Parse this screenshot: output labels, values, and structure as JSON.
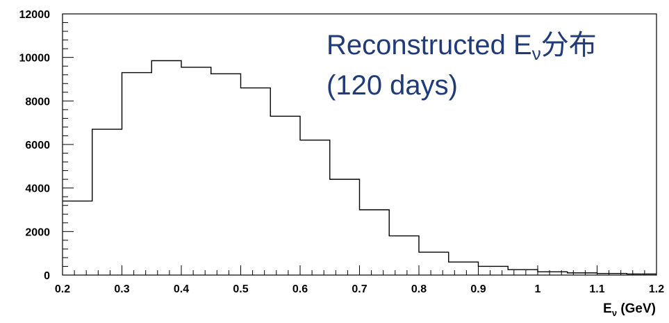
{
  "chart_data": {
    "type": "histogram",
    "title": "",
    "annotation": {
      "line1_prefix": "Reconstructed E",
      "line1_subscript": "ν",
      "line1_suffix": "分布",
      "line2": "(120 days)"
    },
    "xlabel": {
      "main": "E",
      "subscript": "ν",
      "unit": " (GeV)"
    },
    "ylabel": "",
    "xlim": [
      0.2,
      1.2
    ],
    "ylim": [
      0,
      12000
    ],
    "x_ticks": [
      0.2,
      0.3,
      0.4,
      0.5,
      0.6,
      0.7,
      0.8,
      0.9,
      1.0,
      1.1,
      1.2
    ],
    "x_tick_labels": [
      "0.2",
      "0.3",
      "0.4",
      "0.5",
      "0.6",
      "0.7",
      "0.8",
      "0.9",
      "1",
      "1.1",
      "1.2"
    ],
    "y_ticks": [
      0,
      2000,
      4000,
      6000,
      8000,
      10000,
      12000
    ],
    "y_tick_labels": [
      "0",
      "2000",
      "4000",
      "6000",
      "8000",
      "10000",
      "12000"
    ],
    "bin_edges": [
      0.2,
      0.25,
      0.3,
      0.35,
      0.4,
      0.45,
      0.5,
      0.55,
      0.6,
      0.65,
      0.7,
      0.75,
      0.8,
      0.85,
      0.9,
      0.95,
      1.0,
      1.05,
      1.1,
      1.15,
      1.2
    ],
    "values": [
      3400,
      6700,
      9300,
      9850,
      9550,
      9250,
      8600,
      7300,
      6200,
      4400,
      3000,
      1800,
      1050,
      600,
      400,
      250,
      150,
      100,
      75,
      50
    ],
    "grid": false,
    "line_color": "#000000",
    "annotation_color": "#1f3b7a"
  }
}
